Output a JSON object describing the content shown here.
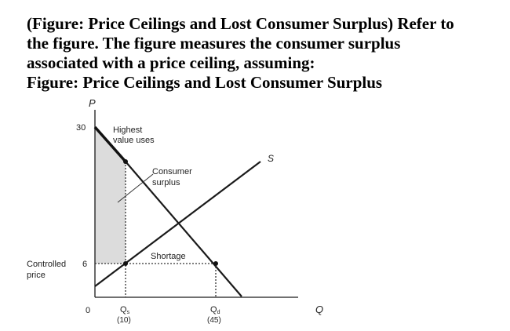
{
  "question": {
    "lines": [
      "(Figure: Price Ceilings and Lost Consumer Surplus) Refer to",
      "the figure. The figure measures the consumer surplus",
      "associated with a price ceiling, assuming:",
      "Figure: Price Ceilings and Lost Consumer Surplus"
    ]
  },
  "figure": {
    "y_axis_label": "P",
    "x_axis_label": "Q",
    "origin_label": "0",
    "y_tick_30": "30",
    "y_tick_6": "6",
    "controlled_price_label_line1": "Controlled",
    "controlled_price_label_line2": "price",
    "highest_value_label_line1": "Highest",
    "highest_value_label_line2": "value uses",
    "consumer_surplus_label_line1": "Consumer",
    "consumer_surplus_label_line2": "surplus",
    "shortage_label": "Shortage",
    "supply_label": "S",
    "qs_label": "Q",
    "qs_subscript": "s",
    "qs_value": "(10)",
    "qd_label": "Q",
    "qd_subscript": "d",
    "qd_value": "(45)",
    "colors": {
      "shaded_area": "#dcdcdc",
      "lines": "#1a1a1a"
    }
  }
}
